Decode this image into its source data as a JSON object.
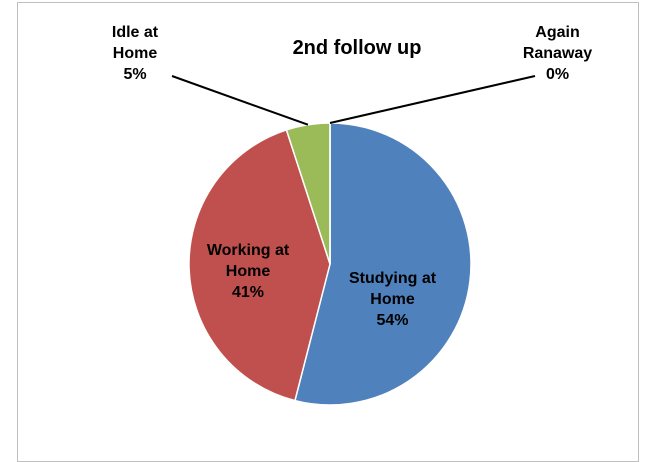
{
  "chart_data": {
    "type": "pie",
    "title": "2nd follow up",
    "categories": [
      "Studying at Home",
      "Working at Home",
      "Idle at Home",
      "Again Ranaway"
    ],
    "values": [
      54,
      41,
      5,
      0
    ],
    "value_labels": [
      "54%",
      "41%",
      "5%",
      "0%"
    ],
    "colors": [
      "#4f81bd",
      "#c0504d",
      "#9bbb59",
      "#8064a2"
    ]
  }
}
